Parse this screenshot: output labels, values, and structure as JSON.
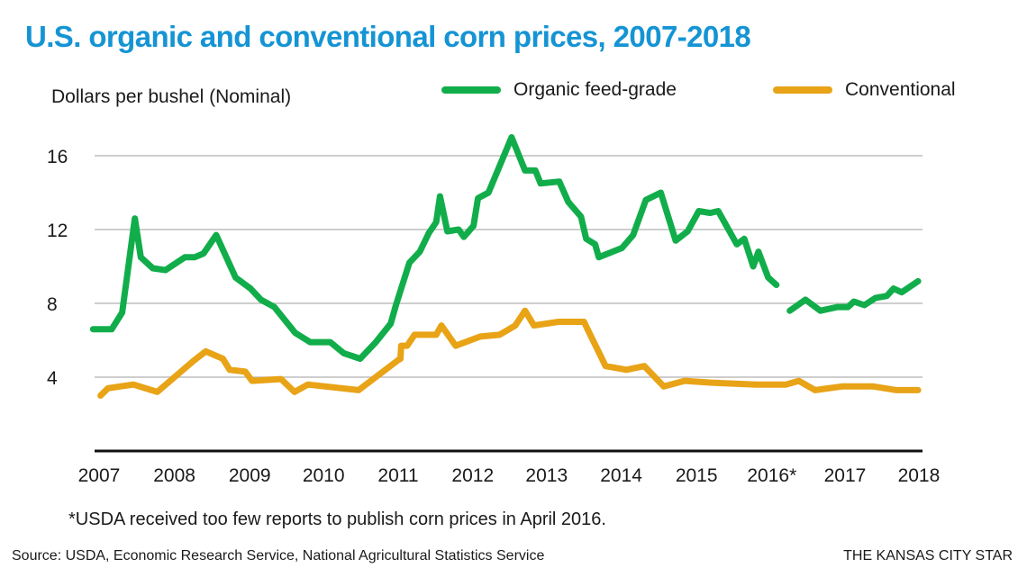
{
  "title": "U.S. organic and conventional corn prices, 2007-2018",
  "footnote": "*USDA received too few reports to publish corn prices in April 2016.",
  "source": "Source: USDA, Economic Research Service, National Agricultural Statistics Service",
  "credit": "THE KANSAS CITY STAR",
  "colors": {
    "title": "#1594d4",
    "organic": "#12ad4b",
    "conventional": "#e8a316",
    "grid": "#bdbdbd",
    "axis": "#111111"
  },
  "chart_data": {
    "type": "line",
    "title": "U.S. organic and conventional corn prices, 2007-2018",
    "ylabel": "Dollars per bushel (Nominal)",
    "xlabel": "",
    "ylim": [
      0,
      17.5
    ],
    "xlim": [
      2007.0,
      2018.1
    ],
    "yticks": [
      4,
      8,
      12,
      16
    ],
    "xticks": [
      {
        "value": 2007.06,
        "label": "2007"
      },
      {
        "value": 2008.07,
        "label": "2008"
      },
      {
        "value": 2009.08,
        "label": "2009"
      },
      {
        "value": 2010.07,
        "label": "2010"
      },
      {
        "value": 2011.07,
        "label": "2011"
      },
      {
        "value": 2012.07,
        "label": "2012"
      },
      {
        "value": 2013.06,
        "label": "2013"
      },
      {
        "value": 2014.06,
        "label": "2014"
      },
      {
        "value": 2015.07,
        "label": "2015"
      },
      {
        "value": 2016.08,
        "label": "2016*"
      },
      {
        "value": 2017.06,
        "label": "2017"
      },
      {
        "value": 2018.05,
        "label": "2018"
      }
    ],
    "grid": true,
    "legend": "top-right",
    "series": [
      {
        "name": "Organic feed-grade",
        "segments": [
          [
            [
              2006.98,
              6.6
            ],
            [
              2007.23,
              6.6
            ],
            [
              2007.37,
              7.5
            ],
            [
              2007.54,
              12.6
            ],
            [
              2007.62,
              10.5
            ],
            [
              2007.78,
              9.9
            ],
            [
              2007.95,
              9.8
            ],
            [
              2008.21,
              10.5
            ],
            [
              2008.34,
              10.5
            ],
            [
              2008.46,
              10.7
            ],
            [
              2008.63,
              11.7
            ],
            [
              2008.89,
              9.4
            ],
            [
              2009.09,
              8.8
            ],
            [
              2009.23,
              8.2
            ],
            [
              2009.41,
              7.8
            ],
            [
              2009.69,
              6.4
            ],
            [
              2009.89,
              5.9
            ],
            [
              2010.16,
              5.9
            ],
            [
              2010.34,
              5.3
            ],
            [
              2010.56,
              5.0
            ],
            [
              2010.77,
              5.9
            ],
            [
              2010.97,
              6.9
            ],
            [
              2011.04,
              7.9
            ],
            [
              2011.22,
              10.2
            ],
            [
              2011.36,
              10.8
            ],
            [
              2011.48,
              11.8
            ],
            [
              2011.58,
              12.4
            ],
            [
              2011.63,
              13.8
            ],
            [
              2011.73,
              11.9
            ],
            [
              2011.88,
              12.0
            ],
            [
              2011.95,
              11.6
            ],
            [
              2012.08,
              12.2
            ],
            [
              2012.14,
              13.7
            ],
            [
              2012.28,
              14.0
            ],
            [
              2012.59,
              17.0
            ],
            [
              2012.77,
              15.2
            ],
            [
              2012.91,
              15.2
            ],
            [
              2012.98,
              14.5
            ],
            [
              2013.23,
              14.6
            ],
            [
              2013.35,
              13.5
            ],
            [
              2013.52,
              12.7
            ],
            [
              2013.59,
              11.5
            ],
            [
              2013.71,
              11.2
            ],
            [
              2013.76,
              10.5
            ],
            [
              2014.07,
              11.0
            ],
            [
              2014.22,
              11.7
            ],
            [
              2014.39,
              13.6
            ],
            [
              2014.59,
              14.0
            ],
            [
              2014.79,
              11.4
            ],
            [
              2014.95,
              11.9
            ],
            [
              2015.1,
              13.0
            ],
            [
              2015.25,
              12.9
            ],
            [
              2015.36,
              13.0
            ],
            [
              2015.61,
              11.2
            ],
            [
              2015.71,
              11.5
            ],
            [
              2015.83,
              10.0
            ],
            [
              2015.9,
              10.8
            ],
            [
              2016.03,
              9.4
            ],
            [
              2016.14,
              9.0
            ]
          ],
          [
            [
              2016.32,
              7.6
            ],
            [
              2016.53,
              8.2
            ],
            [
              2016.73,
              7.6
            ],
            [
              2016.96,
              7.8
            ],
            [
              2017.1,
              7.8
            ],
            [
              2017.18,
              8.1
            ],
            [
              2017.32,
              7.9
            ],
            [
              2017.47,
              8.3
            ],
            [
              2017.62,
              8.4
            ],
            [
              2017.71,
              8.8
            ],
            [
              2017.82,
              8.6
            ],
            [
              2018.04,
              9.2
            ]
          ]
        ]
      },
      {
        "name": "Conventional",
        "segments": [
          [
            [
              2007.08,
              3.0
            ],
            [
              2007.18,
              3.4
            ],
            [
              2007.52,
              3.6
            ],
            [
              2007.84,
              3.2
            ],
            [
              2008.33,
              4.9
            ],
            [
              2008.49,
              5.4
            ],
            [
              2008.72,
              5.0
            ],
            [
              2008.81,
              4.4
            ],
            [
              2009.02,
              4.3
            ],
            [
              2009.11,
              3.8
            ],
            [
              2009.5,
              3.9
            ],
            [
              2009.68,
              3.2
            ],
            [
              2009.86,
              3.6
            ],
            [
              2010.54,
              3.3
            ],
            [
              2011.06,
              4.9
            ],
            [
              2011.1,
              5.0
            ],
            [
              2011.11,
              5.7
            ],
            [
              2011.19,
              5.7
            ],
            [
              2011.29,
              6.3
            ],
            [
              2011.58,
              6.3
            ],
            [
              2011.65,
              6.8
            ],
            [
              2011.84,
              5.7
            ],
            [
              2012.17,
              6.2
            ],
            [
              2012.43,
              6.3
            ],
            [
              2012.64,
              6.8
            ],
            [
              2012.77,
              7.6
            ],
            [
              2012.89,
              6.8
            ],
            [
              2013.22,
              7.0
            ],
            [
              2013.56,
              7.0
            ],
            [
              2013.85,
              4.6
            ],
            [
              2014.13,
              4.4
            ],
            [
              2014.37,
              4.6
            ],
            [
              2014.63,
              3.5
            ],
            [
              2014.91,
              3.8
            ],
            [
              2015.27,
              3.7
            ],
            [
              2015.87,
              3.6
            ],
            [
              2016.27,
              3.6
            ],
            [
              2016.44,
              3.8
            ],
            [
              2016.66,
              3.3
            ],
            [
              2017.02,
              3.5
            ],
            [
              2017.44,
              3.5
            ],
            [
              2017.75,
              3.3
            ],
            [
              2018.04,
              3.3
            ]
          ]
        ]
      }
    ]
  }
}
